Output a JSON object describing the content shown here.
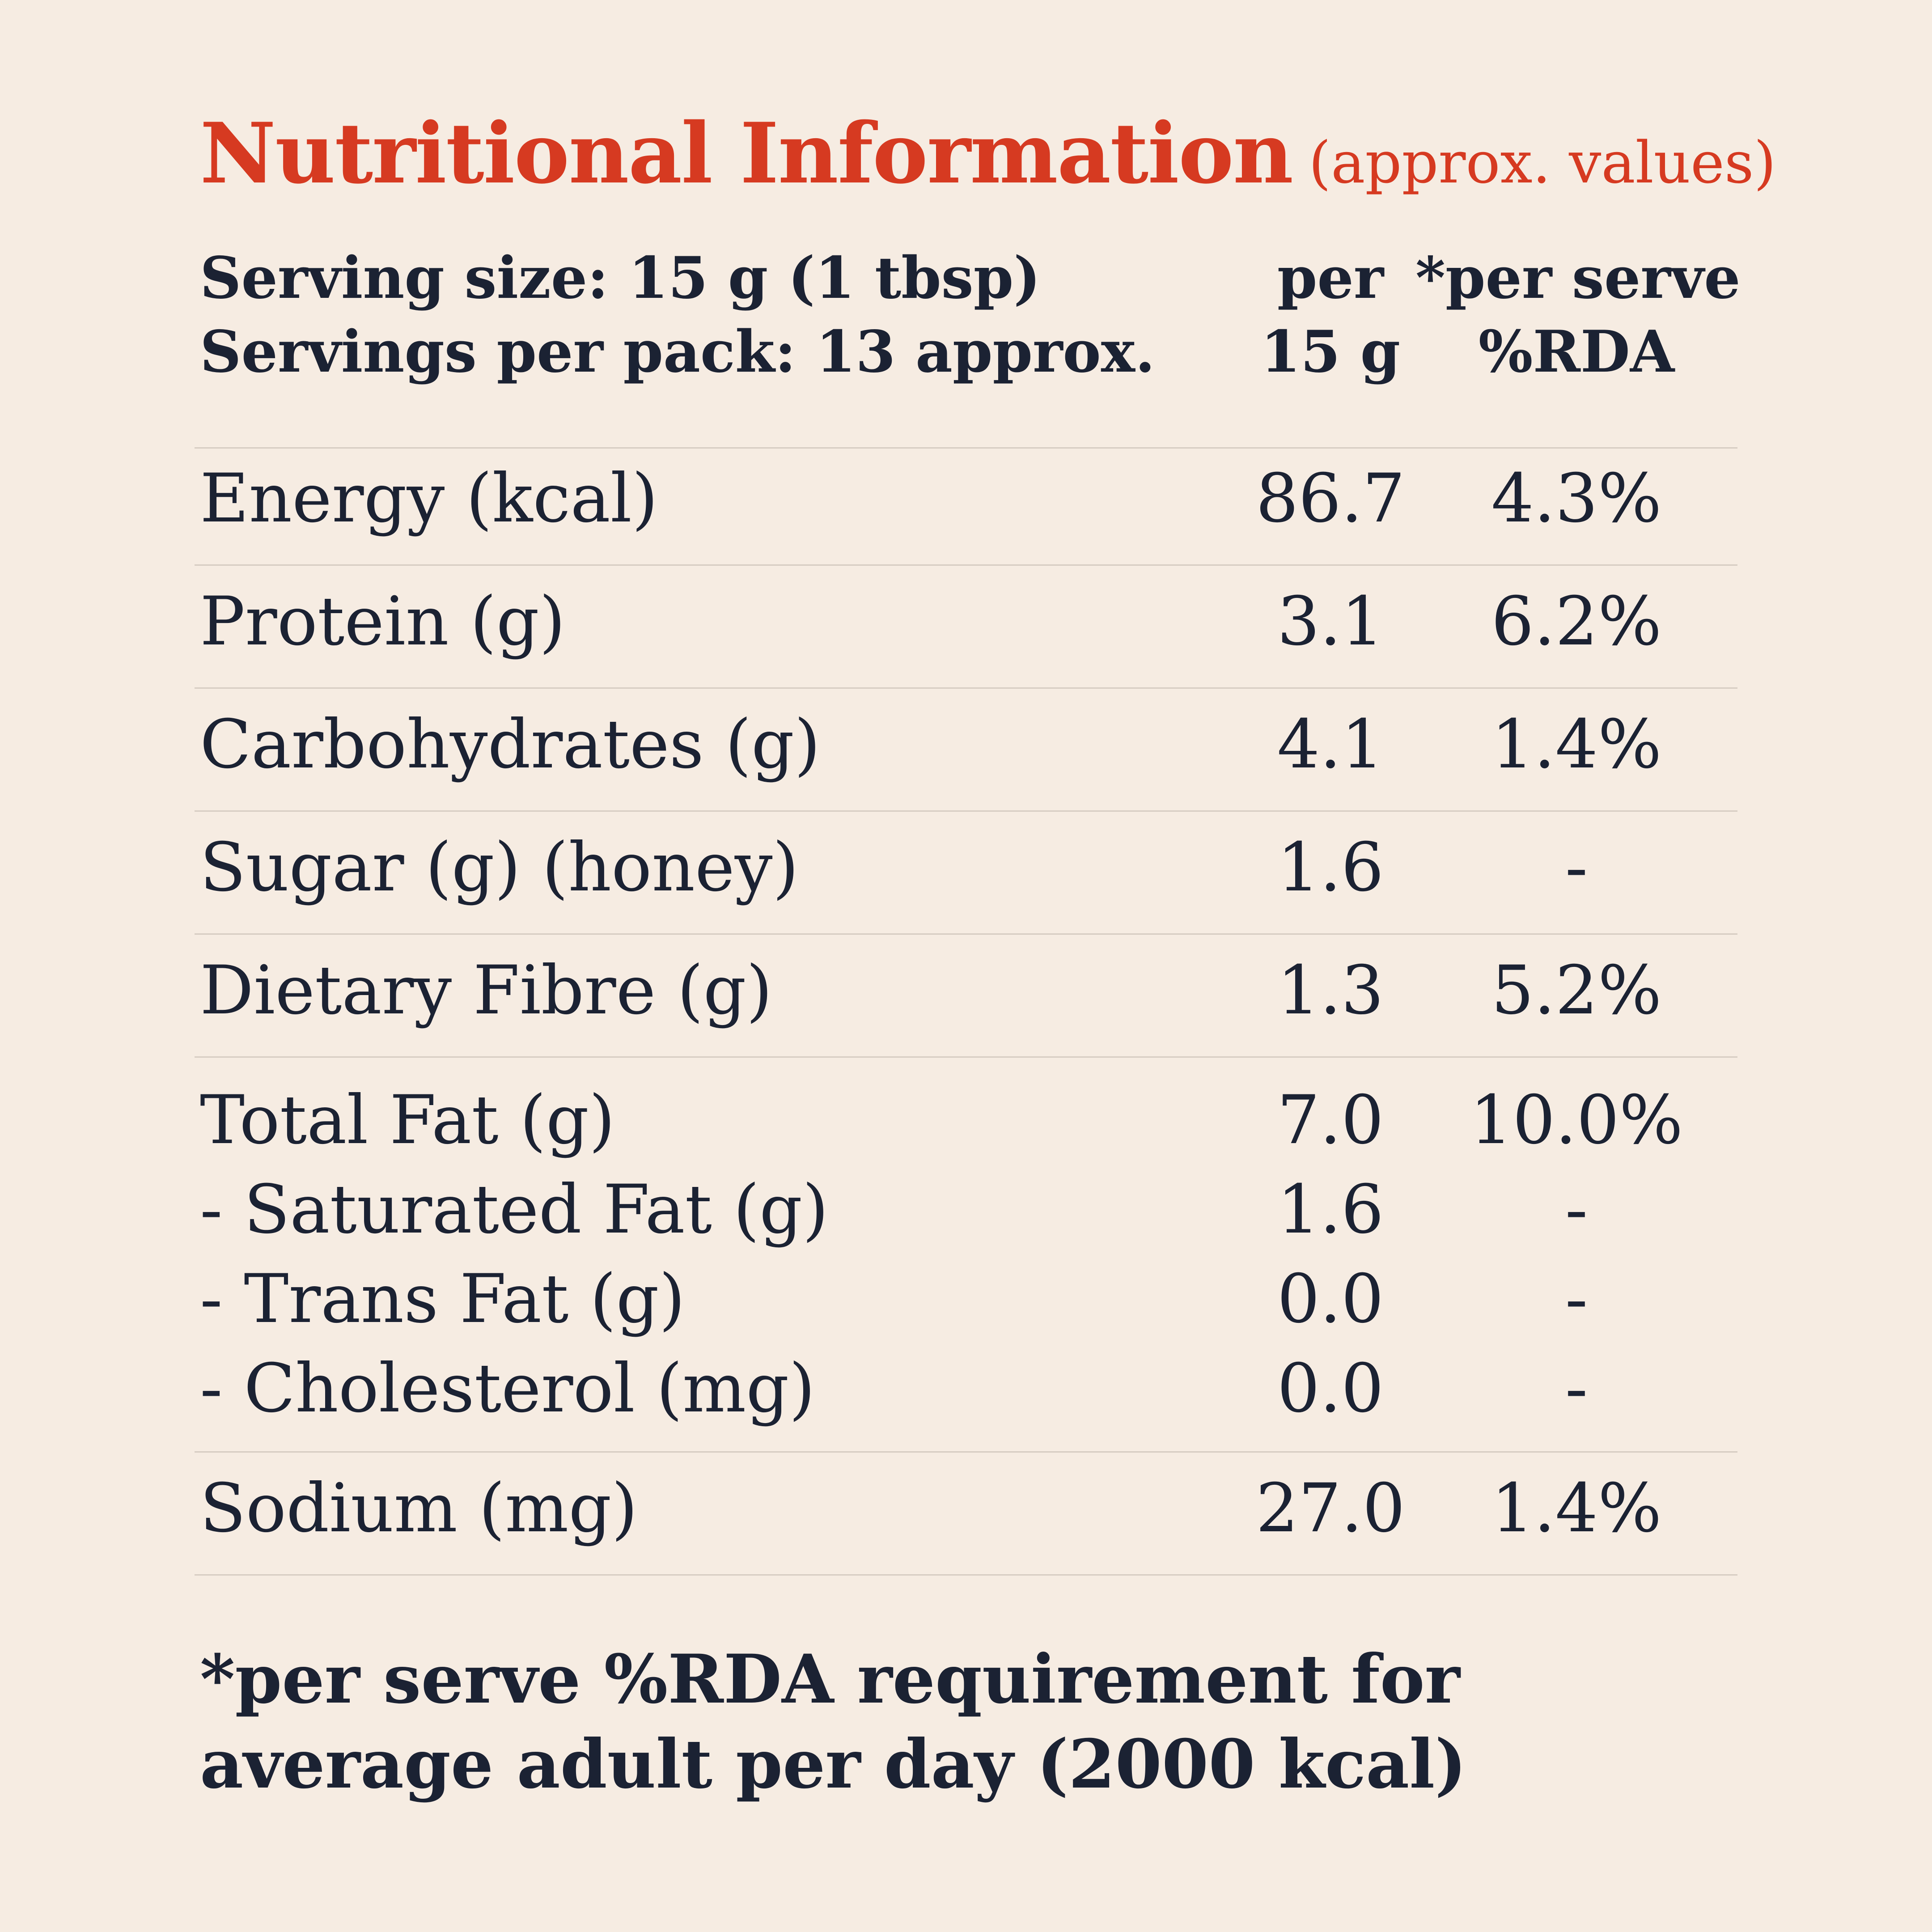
{
  "title": {
    "main": "Nutritional Information",
    "sub": "(approx. values)"
  },
  "header": {
    "serving_size": "Serving size: 15 g (1 tbsp)",
    "servings_per_pack": "Servings per pack: 13 approx.",
    "col_per_line1": "per",
    "col_per_line2": "15 g",
    "col_rda_line1": "*per serve",
    "col_rda_line2": "%RDA"
  },
  "rows": [
    {
      "label": "Energy (kcal)",
      "value": "86.7",
      "rda": "4.3%"
    },
    {
      "label": "Protein (g)",
      "value": "3.1",
      "rda": "6.2%"
    },
    {
      "label": "Carbohydrates (g)",
      "value": "4.1",
      "rda": "1.4%"
    },
    {
      "label": "Sugar (g) (honey)",
      "value": "1.6",
      "rda": "-"
    },
    {
      "label": "Dietary Fibre (g)",
      "value": "1.3",
      "rda": "5.2%"
    }
  ],
  "fat_group": [
    {
      "label": "Total Fat (g)",
      "value": "7.0",
      "rda": "10.0%"
    },
    {
      "label": "- Saturated Fat (g)",
      "value": "1.6",
      "rda": "-"
    },
    {
      "label": "- Trans Fat (g)",
      "value": "0.0",
      "rda": "-"
    },
    {
      "label": "- Cholesterol (mg)",
      "value": "0.0",
      "rda": "-"
    }
  ],
  "sodium": {
    "label": "Sodium (mg)",
    "value": "27.0",
    "rda": "1.4%"
  },
  "footnote": "*per serve %RDA requirement for average adult per day (2000 kcal)"
}
